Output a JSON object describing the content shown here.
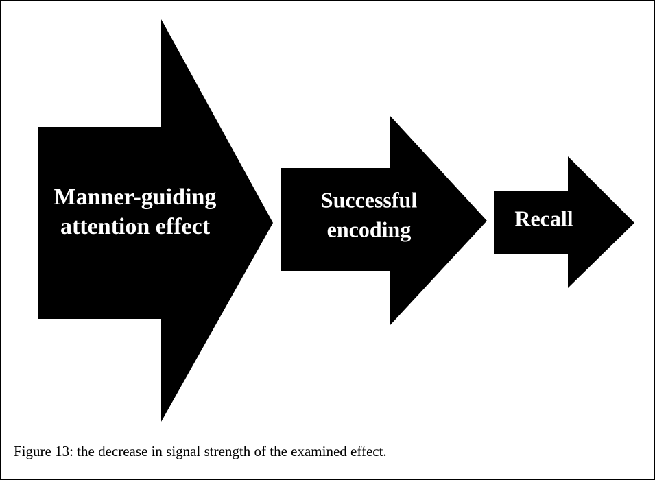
{
  "nodes": [
    {
      "lines": [
        "Manner-guiding",
        "attention effect"
      ]
    },
    {
      "lines": [
        "Successful",
        "encoding"
      ]
    },
    {
      "lines": [
        "Recall"
      ]
    }
  ],
  "caption": "Figure 13: the decrease in signal strength of the examined effect."
}
